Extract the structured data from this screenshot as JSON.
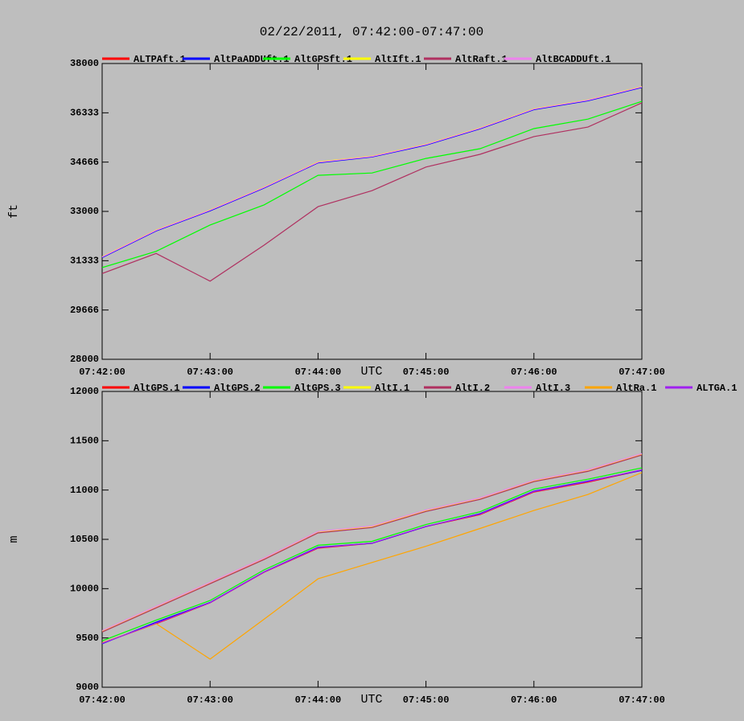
{
  "chart_data": [
    {
      "type": "line",
      "title": "02/22/2011, 07:42:00-07:47:00",
      "x_label": "UTC",
      "y_label": "ft",
      "x": [
        "07:42:00",
        "07:42:30",
        "07:43:00",
        "07:43:30",
        "07:44:00",
        "07:44:30",
        "07:45:00",
        "07:45:30",
        "07:46:00",
        "07:46:30",
        "07:47:00"
      ],
      "xlim": [
        "07:42:00",
        "07:47:00"
      ],
      "xticks": [
        "07:42:00",
        "07:43:00",
        "07:44:00",
        "07:45:00",
        "07:46:00",
        "07:47:00"
      ],
      "ylim": [
        28000,
        38000
      ],
      "yticks": [
        28000,
        29666,
        31333,
        33000,
        34666,
        36333,
        38000
      ],
      "series": [
        {
          "name": "ALTPAft.1",
          "color": "#ff0000",
          "values": [
            31450,
            32350,
            33030,
            33800,
            34650,
            34850,
            35250,
            35800,
            36450,
            36750,
            37200
          ]
        },
        {
          "name": "AltPaADDUft.1",
          "color": "#0000ff",
          "values": [
            31440,
            32340,
            33020,
            33790,
            34640,
            34840,
            35240,
            35790,
            36440,
            36740,
            37190
          ]
        },
        {
          "name": "AltGPSft.1",
          "color": "#00ff00",
          "values": [
            31100,
            31650,
            32540,
            33220,
            34220,
            34300,
            34790,
            35120,
            35800,
            36120,
            36720
          ]
        },
        {
          "name": "AltIft.1",
          "color": "#ffff00",
          "values": [
            31470,
            32370,
            33050,
            33820,
            34670,
            34870,
            35270,
            35820,
            36470,
            36770,
            37220
          ]
        },
        {
          "name": "AltRaft.1",
          "color": "#b03060",
          "values": [
            30900,
            31580,
            30640,
            31860,
            33160,
            33700,
            34500,
            34930,
            35530,
            35850,
            36670
          ]
        },
        {
          "name": "AltBCADDUft.1",
          "color": "#ee82ee",
          "values": [
            31460,
            32360,
            33040,
            33810,
            34660,
            34860,
            35260,
            35810,
            36460,
            36760,
            37210
          ]
        }
      ]
    },
    {
      "type": "line",
      "x_label": "UTC",
      "y_label": "m",
      "x": [
        "07:42:00",
        "07:42:30",
        "07:43:00",
        "07:43:30",
        "07:44:00",
        "07:44:30",
        "07:45:00",
        "07:45:30",
        "07:46:00",
        "07:46:30",
        "07:47:00"
      ],
      "xlim": [
        "07:42:00",
        "07:47:00"
      ],
      "xticks": [
        "07:42:00",
        "07:43:00",
        "07:44:00",
        "07:45:00",
        "07:46:00",
        "07:47:00"
      ],
      "ylim": [
        9000,
        12000
      ],
      "yticks": [
        9000,
        9500,
        10000,
        10500,
        11000,
        11500,
        12000
      ],
      "series": [
        {
          "name": "AltGPS.1",
          "color": "#ff0000",
          "values": [
            9448,
            9644,
            9856,
            10166,
            10410,
            10460,
            10630,
            10750,
            10980,
            11080,
            11200
          ]
        },
        {
          "name": "AltGPS.2",
          "color": "#0000ff",
          "values": [
            9440,
            9660,
            9860,
            10170,
            10420,
            10460,
            10630,
            10760,
            10990,
            11090,
            11200
          ]
        },
        {
          "name": "AltGPS.3",
          "color": "#00ff00",
          "values": [
            9470,
            9680,
            9880,
            10190,
            10440,
            10480,
            10650,
            10780,
            11010,
            11110,
            11225
          ]
        },
        {
          "name": "AltI.1",
          "color": "#ffff00",
          "values": [
            9570,
            9815,
            10060,
            10305,
            10575,
            10630,
            10793,
            10915,
            11095,
            11200,
            11365
          ]
        },
        {
          "name": "AltI.2",
          "color": "#b03060",
          "values": [
            9560,
            9805,
            10050,
            10295,
            10565,
            10620,
            10783,
            10905,
            11085,
            11190,
            11355
          ]
        },
        {
          "name": "AltI.3",
          "color": "#ee82ee",
          "values": [
            9575,
            9820,
            10065,
            10310,
            10580,
            10635,
            10798,
            10920,
            11100,
            11205,
            11370
          ]
        },
        {
          "name": "AltRa.1",
          "color": "#ffa500",
          "values": [
            9450,
            9645,
            9285,
            9690,
            10100,
            10265,
            10430,
            10610,
            10793,
            10955,
            11177
          ]
        },
        {
          "name": "ALTGA.1",
          "color": "#a020f0",
          "values": [
            9445,
            9650,
            9858,
            10168,
            10415,
            10462,
            10632,
            10755,
            10985,
            11085,
            11205
          ]
        }
      ]
    }
  ]
}
